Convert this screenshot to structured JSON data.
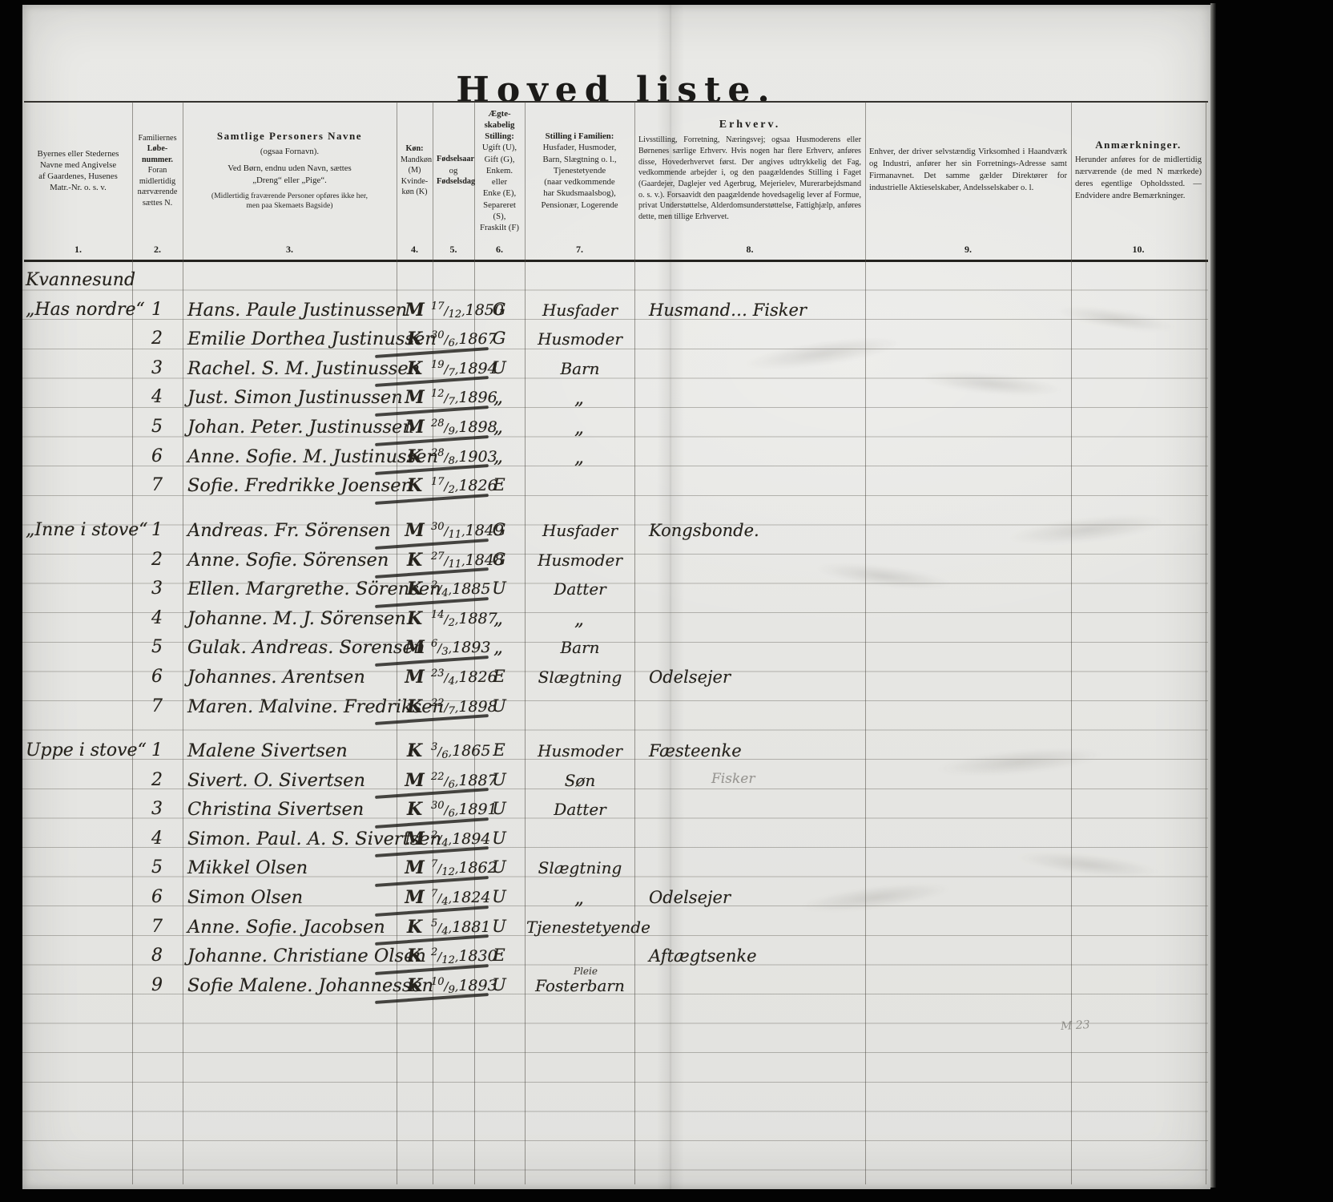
{
  "title": "Hoved liste.",
  "pencil_note": "M 23",
  "columns": [
    {
      "num": "1.",
      "parts": [
        {
          "s": "p",
          "t": "Byernes eller Stedernes"
        },
        {
          "s": "p",
          "t": "Navne med Angivelse"
        },
        {
          "s": "p",
          "t": "af Gaardenes, Husenes"
        },
        {
          "s": "p",
          "t": "Matr.-Nr. o. s. v."
        }
      ]
    },
    {
      "num": "2.",
      "parts": [
        {
          "s": "p",
          "t": "Familiernes"
        },
        {
          "s": "b",
          "t": "Løbe-"
        },
        {
          "s": "b",
          "t": "nummer."
        },
        {
          "s": "p",
          "t": "Foran"
        },
        {
          "s": "p",
          "t": "midlertidig"
        },
        {
          "s": "p",
          "t": "nærværende"
        },
        {
          "s": "p",
          "t": "sættes N."
        }
      ]
    },
    {
      "num": "3.",
      "parts": [
        {
          "s": "b2",
          "t": "Samtlige Personers Navne"
        },
        {
          "s": "p",
          "t": "(ogsaa Fornavn)."
        },
        {
          "s": "gap",
          "t": ""
        },
        {
          "s": "p",
          "t": "Ved Børn, endnu uden Navn, sættes"
        },
        {
          "s": "p",
          "t": "„Dreng“ eller „Pige“."
        },
        {
          "s": "gap",
          "t": ""
        },
        {
          "s": "t",
          "t": "(Midlertidig fraværende Personer opføres ikke her,"
        },
        {
          "s": "t",
          "t": "men paa Skemaets Bagside)"
        }
      ]
    },
    {
      "num": "4.",
      "parts": [
        {
          "s": "b",
          "t": "Køn:"
        },
        {
          "s": "p",
          "t": "Mandkøn"
        },
        {
          "s": "p",
          "t": "(M)"
        },
        {
          "s": "p",
          "t": "Kvinde-"
        },
        {
          "s": "p",
          "t": "køn (K)"
        }
      ]
    },
    {
      "num": "5.",
      "parts": [
        {
          "s": "b",
          "t": "Fødselsaar"
        },
        {
          "s": "p",
          "t": "og"
        },
        {
          "s": "b",
          "t": "Fødselsdag"
        }
      ]
    },
    {
      "num": "6.",
      "parts": [
        {
          "s": "b",
          "t": "Ægte-"
        },
        {
          "s": "b",
          "t": "skabelig"
        },
        {
          "s": "b",
          "t": "Stilling:"
        },
        {
          "s": "p",
          "t": "Ugift (U),"
        },
        {
          "s": "p",
          "t": "Gift (G),"
        },
        {
          "s": "p",
          "t": "Enkem. eller"
        },
        {
          "s": "p",
          "t": "Enke (E),"
        },
        {
          "s": "p",
          "t": "Separeret"
        },
        {
          "s": "p",
          "t": "(S),"
        },
        {
          "s": "p",
          "t": "Fraskilt (F)"
        }
      ]
    },
    {
      "num": "7.",
      "parts": [
        {
          "s": "b",
          "t": "Stilling i Familien:"
        },
        {
          "s": "p",
          "t": "Husfader, Husmoder,"
        },
        {
          "s": "p",
          "t": "Barn, Slægtning o. l.,"
        },
        {
          "s": "p",
          "t": "Tjenestetyende"
        },
        {
          "s": "p",
          "t": "(naar vedkommende"
        },
        {
          "s": "p",
          "t": "har Skudsmaalsbog),"
        },
        {
          "s": "p",
          "t": "Pensionær, Logerende"
        }
      ]
    },
    {
      "num": "8.",
      "parts": [
        {
          "s": "b2",
          "t": "Erhverv."
        },
        {
          "s": "j",
          "t": "Livsstilling, Forretning, Næringsvej; ogsaa Husmoderens eller Børnenes særlige Erhverv. Hvis nogen har flere Erhverv, anføres disse, Hovederhvervet først. Der angives udtrykkelig det Fag, vedkommende arbejder i, og den paagældendes Stilling i Faget (Gaardejer, Daglejer ved Agerbrug, Mejerielev, Murerarbejdsmand o. s. v.). Forsaavidt den paagældende hovedsagelig lever af Formue, privat Understøttelse, Alderdomsunderstøttelse, Fattighjælp, anføres dette, men tillige Erhvervet."
        }
      ]
    },
    {
      "num": "9.",
      "parts": [
        {
          "s": "j",
          "t": "Enhver, der driver selvstændig Virksomhed i Haandværk og Industri, anfører her sin Forretnings-Adresse samt Firmanavnet. Det samme gælder Direktører for industrielle Aktieselskaber, Andelsselskaber o. l."
        }
      ]
    },
    {
      "num": "10.",
      "parts": [
        {
          "s": "b2",
          "t": "Anmærkninger."
        },
        {
          "s": "j",
          "t": "Herunder anføres for de midlertidig nærværende (de med N mærkede) deres egentlige Opholdssted. — Endvidere andre Bemærkninger."
        }
      ]
    }
  ],
  "groups": [
    {
      "rows": [
        {
          "place": "Kvannesund"
        },
        {
          "place": "„Has nordre“",
          "no": "1",
          "name": "Hans. Paule Justinussen",
          "sex": "M",
          "day": "17/12",
          "year": "1850",
          "marital": "G",
          "family": "Husfader",
          "occupation": "Husmand… Fisker"
        },
        {
          "no": "2",
          "name": "Emilie Dorthea Justinussen",
          "sex": "K",
          "day": "30/6",
          "year": "1867",
          "marital": "G",
          "family": "Husmoder",
          "strike": true
        },
        {
          "no": "3",
          "name": "Rachel. S. M. Justinussen",
          "sex": "K",
          "day": "19/7",
          "year": "1894",
          "marital": "U",
          "family": "Barn",
          "strike": true
        },
        {
          "no": "4",
          "name": "Just. Simon Justinussen",
          "sex": "M",
          "day": "12/7",
          "year": "1896",
          "marital": "„",
          "family": "„",
          "strike": true
        },
        {
          "no": "5",
          "name": "Johan. Peter. Justinussen",
          "sex": "M",
          "day": "28/9",
          "year": "1898",
          "marital": "„",
          "family": "„",
          "strike": true
        },
        {
          "no": "6",
          "name": "Anne. Sofie. M. Justinussen",
          "sex": "K",
          "day": "28/8",
          "year": "1903",
          "marital": "„",
          "family": "„",
          "strike": true
        },
        {
          "no": "7",
          "name": "Sofie. Fredrikke Joensen",
          "sex": "K",
          "day": "17/2",
          "year": "1826",
          "marital": "E",
          "strike": true
        }
      ]
    },
    {
      "rows": [
        {
          "place": "„Inne i stove“",
          "no": "1",
          "name": "Andreas. Fr. Sörensen",
          "sex": "M",
          "day": "30/11",
          "year": "1849",
          "marital": "G",
          "family": "Husfader",
          "occupation": "Kongsbonde.",
          "strike": true
        },
        {
          "no": "2",
          "name": "Anne. Sofie. Sörensen",
          "sex": "K",
          "day": "27/11",
          "year": "1848",
          "marital": "G",
          "family": "Husmoder",
          "strike": true
        },
        {
          "no": "3",
          "name": "Ellen. Margrethe. Sörensen",
          "sex": "K",
          "day": "2/4",
          "year": "1885",
          "marital": "U",
          "family": "Datter",
          "strike": true
        },
        {
          "no": "4",
          "name": "Johanne. M. J. Sörensen",
          "sex": "K",
          "day": "14/2",
          "year": "1887",
          "marital": "„",
          "family": "„"
        },
        {
          "no": "5",
          "name": "Gulak. Andreas. Sorensen",
          "sex": "M",
          "day": "6/3",
          "year": "1893",
          "marital": "„",
          "family": "Barn",
          "strike": true
        },
        {
          "no": "6",
          "name": "Johannes. Arentsen",
          "sex": "M",
          "day": "23/4",
          "year": "1826",
          "marital": "E",
          "family": "Slægtning",
          "occupation": "Odelsejer"
        },
        {
          "no": "7",
          "name": "Maren. Malvine. Fredriksen",
          "sex": "K",
          "day": "22/7",
          "year": "1898",
          "marital": "U",
          "strike": true
        }
      ]
    },
    {
      "rows": [
        {
          "place": "Uppe i stove“",
          "no": "1",
          "name": "Malene Sivertsen",
          "sex": "K",
          "day": "3/6",
          "year": "1865",
          "marital": "E",
          "family": "Husmoder",
          "occupation": "Fæsteenke"
        },
        {
          "no": "2",
          "name": "Sivert. O. Sivertsen",
          "sex": "M",
          "day": "22/6",
          "year": "1887",
          "marital": "U",
          "family": "Søn",
          "occupation": "Fisker",
          "occupation_faint": true,
          "strike": true
        },
        {
          "no": "3",
          "name": "Christina Sivertsen",
          "sex": "K",
          "day": "30/6",
          "year": "1891",
          "marital": "U",
          "family": "Datter",
          "strike": true
        },
        {
          "no": "4",
          "name": "Simon. Paul. A. S. Sivertsen",
          "sex": "M",
          "day": "2/4",
          "year": "1894",
          "marital": "U",
          "strike": true
        },
        {
          "no": "5",
          "name": "Mikkel Olsen",
          "sex": "M",
          "day": "7/12",
          "year": "1862",
          "marital": "U",
          "family": "Slægtning",
          "strike": true
        },
        {
          "no": "6",
          "name": "Simon Olsen",
          "sex": "M",
          "day": "7/4",
          "year": "1824",
          "marital": "U",
          "family": "„",
          "occupation": "Odelsejer",
          "strike": true
        },
        {
          "no": "7",
          "name": "Anne. Sofie. Jacobsen",
          "sex": "K",
          "day": "5/4",
          "year": "1881",
          "marital": "U",
          "family": "Tjenestetyende",
          "strike": true
        },
        {
          "no": "8",
          "name": "Johanne. Christiane Olsen",
          "sex": "K",
          "day": "2/12",
          "year": "1830",
          "marital": "E",
          "occupation": "Aftægtsenke",
          "strike": true
        },
        {
          "no": "9",
          "name": "Sofie Malene. Johannessen",
          "sex": "K",
          "day": "10/9",
          "year": "1893",
          "marital": "U",
          "family": "Fosterbarn",
          "family_note": "Pleie",
          "strike": true
        }
      ]
    }
  ]
}
